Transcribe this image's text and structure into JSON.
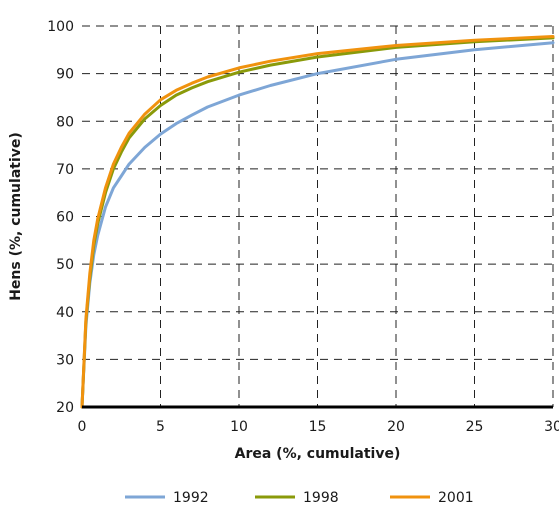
{
  "chart_data": {
    "type": "line",
    "title": "",
    "xlabel": "Area (%, cumulative)",
    "ylabel": "Hens (%, cumulative)",
    "xlim": [
      0,
      30
    ],
    "ylim": [
      20,
      100
    ],
    "xticks": [
      0,
      5,
      10,
      15,
      20,
      25,
      30
    ],
    "yticks": [
      20,
      30,
      40,
      50,
      60,
      70,
      80,
      90,
      100
    ],
    "grid": true,
    "legend_position": "bottom",
    "series": [
      {
        "name": "1992",
        "color": "#7ea6d6",
        "x": [
          0,
          0.25,
          0.5,
          0.75,
          1,
          1.5,
          2,
          2.5,
          3,
          4,
          5,
          6,
          7,
          8,
          10,
          12,
          15,
          20,
          25,
          30
        ],
        "y": [
          20,
          37,
          46,
          52,
          56,
          62,
          66,
          68.5,
          71,
          74.5,
          77.3,
          79.5,
          81.3,
          83,
          85.5,
          87.5,
          90,
          93,
          95,
          96.5
        ]
      },
      {
        "name": "1998",
        "color": "#8a9a0a",
        "x": [
          0,
          0.25,
          0.5,
          0.75,
          1,
          1.5,
          2,
          2.5,
          3,
          4,
          5,
          6,
          7,
          8,
          10,
          12,
          15,
          20,
          25,
          30
        ],
        "y": [
          20,
          38,
          47,
          54,
          58.5,
          65,
          70,
          73.5,
          76.5,
          80.5,
          83.3,
          85.5,
          87,
          88.3,
          90.3,
          91.8,
          93.5,
          95.5,
          96.7,
          97.5
        ]
      },
      {
        "name": "2001",
        "color": "#f0920e",
        "x": [
          0,
          0.25,
          0.5,
          0.75,
          1,
          1.5,
          2,
          2.5,
          3,
          4,
          5,
          6,
          7,
          8,
          10,
          12,
          15,
          20,
          25,
          30
        ],
        "y": [
          20,
          38.5,
          48,
          55,
          59.5,
          66,
          71,
          74.5,
          77.5,
          81.5,
          84.5,
          86.5,
          88,
          89.3,
          91.2,
          92.6,
          94.2,
          95.9,
          97,
          97.8
        ]
      }
    ]
  }
}
